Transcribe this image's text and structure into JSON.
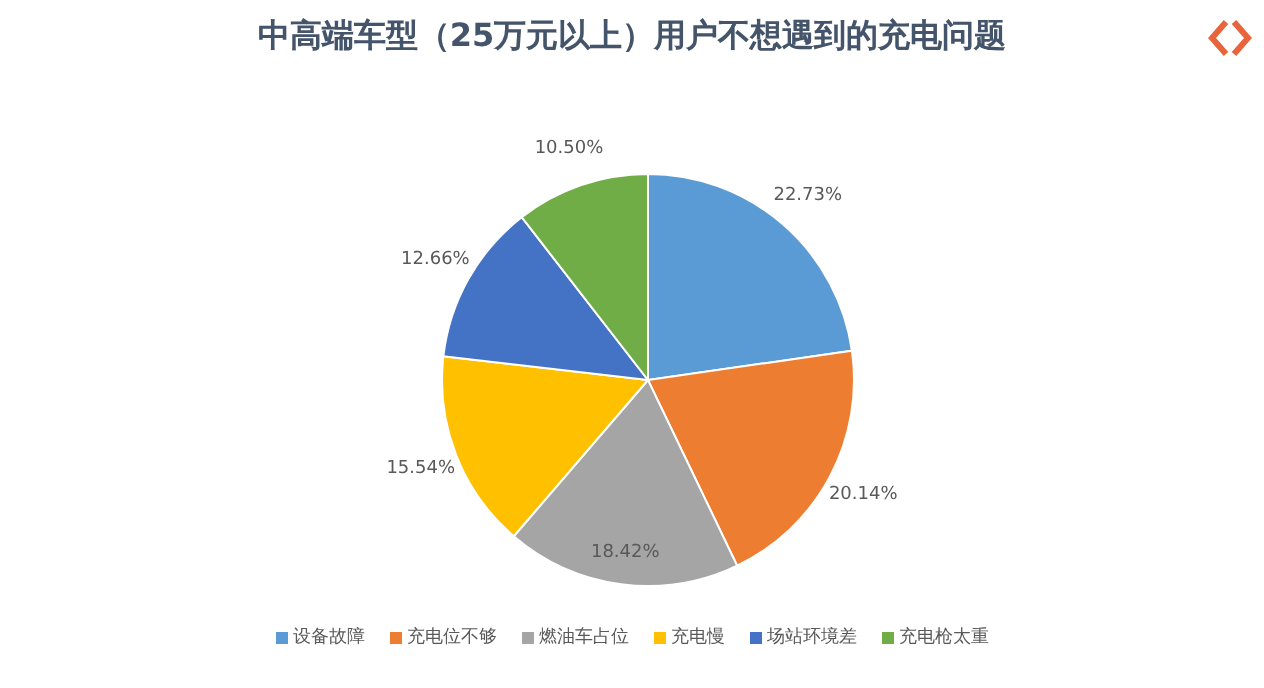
{
  "chart_data": {
    "type": "pie",
    "title": "中高端车型（25万元以上）用户不想遇到的充电问题",
    "categories": [
      "设备故障",
      "充电位不够",
      "燃油车占位",
      "充电慢",
      "场站环境差",
      "充电枪太重"
    ],
    "values": [
      22.73,
      20.14,
      18.42,
      15.54,
      12.66,
      10.5
    ],
    "value_labels": [
      "22.73%",
      "20.14%",
      "18.42%",
      "15.54%",
      "12.66%",
      "10.50%"
    ],
    "colors": [
      "#5b9bd5",
      "#ed7d31",
      "#a5a5a5",
      "#ffc000",
      "#4472c4",
      "#70ad47"
    ],
    "legend": "bottom"
  }
}
